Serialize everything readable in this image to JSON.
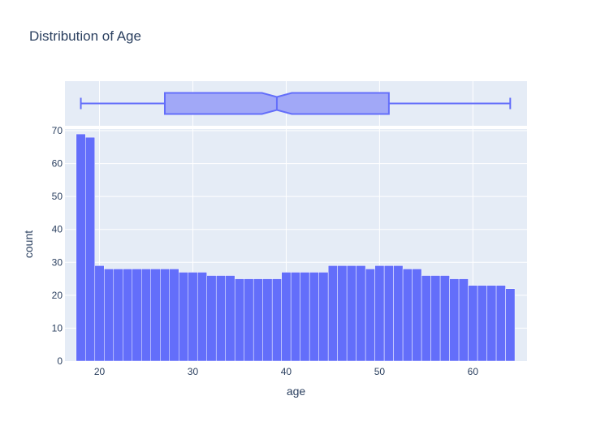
{
  "chart_data": {
    "title": "Distribution of Age",
    "type": "bar",
    "histogram": {
      "xlabel": "age",
      "ylabel": "count",
      "bin_width": 1,
      "bin_starts": [
        18,
        19,
        20,
        21,
        22,
        23,
        24,
        25,
        26,
        27,
        28,
        29,
        30,
        31,
        32,
        33,
        34,
        35,
        36,
        37,
        38,
        39,
        40,
        41,
        42,
        43,
        44,
        45,
        46,
        47,
        48,
        49,
        50,
        51,
        52,
        53,
        54,
        55,
        56,
        57,
        58,
        59,
        60,
        61,
        62,
        63,
        64
      ],
      "values": [
        69,
        68,
        29,
        28,
        28,
        28,
        28,
        28,
        28,
        28,
        28,
        27,
        27,
        27,
        26,
        26,
        26,
        25,
        25,
        25,
        25,
        25,
        27,
        27,
        27,
        27,
        27,
        29,
        29,
        29,
        29,
        28,
        29,
        29,
        29,
        28,
        28,
        26,
        26,
        26,
        25,
        25,
        23,
        23,
        23,
        23,
        22
      ],
      "xlim": [
        16.3,
        65.8
      ],
      "ylim": [
        0,
        70.5
      ],
      "xticks": [
        20,
        30,
        40,
        50,
        60
      ],
      "yticks": [
        0,
        10,
        20,
        30,
        40,
        50,
        60,
        70
      ]
    },
    "boxplot": {
      "variable": "age",
      "min": 18,
      "q1": 27,
      "median": 39,
      "q3": 51,
      "max": 64,
      "notched": true,
      "notch_low": 37.4,
      "notch_high": 40.6
    },
    "colors": {
      "bar_fill": "#636efa",
      "bar_line": "#ffffff",
      "box_fill": "#a1a8f7",
      "box_line": "#636efa",
      "plot_bg": "#e5ecf6",
      "grid": "#ffffff",
      "text": "#2a3f5f"
    },
    "grid": true
  }
}
